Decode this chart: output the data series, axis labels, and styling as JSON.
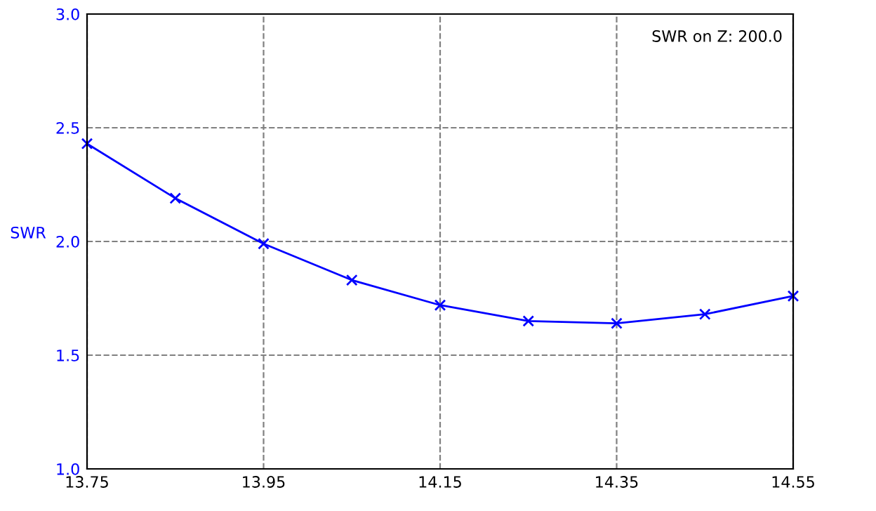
{
  "chart_data": {
    "type": "line",
    "x": [
      13.75,
      13.85,
      13.95,
      14.05,
      14.15,
      14.25,
      14.35,
      14.45,
      14.55
    ],
    "series": [
      {
        "color": "#0000ff",
        "values": [
          2.43,
          2.19,
          1.99,
          1.83,
          1.72,
          1.65,
          1.64,
          1.68,
          1.76
        ]
      }
    ],
    "ylabel": "SWR",
    "annotations": [
      "SWR on Z: 200.0"
    ],
    "xlim": [
      13.75,
      14.55
    ],
    "xticks": [
      13.75,
      13.95,
      14.15,
      14.35,
      14.55
    ],
    "ylim": [
      1.0,
      3.0
    ],
    "yticks": [
      {
        "value": 1.0,
        "label": "1.0"
      },
      {
        "value": 1.5,
        "label": "1.5"
      },
      {
        "value": 2.0,
        "label": "2.0"
      },
      {
        "value": 2.5,
        "label": "2.5"
      },
      {
        "value": 3.0,
        "label": "3.0"
      }
    ],
    "grid": true,
    "marker": "cross",
    "line_style": "solid"
  }
}
